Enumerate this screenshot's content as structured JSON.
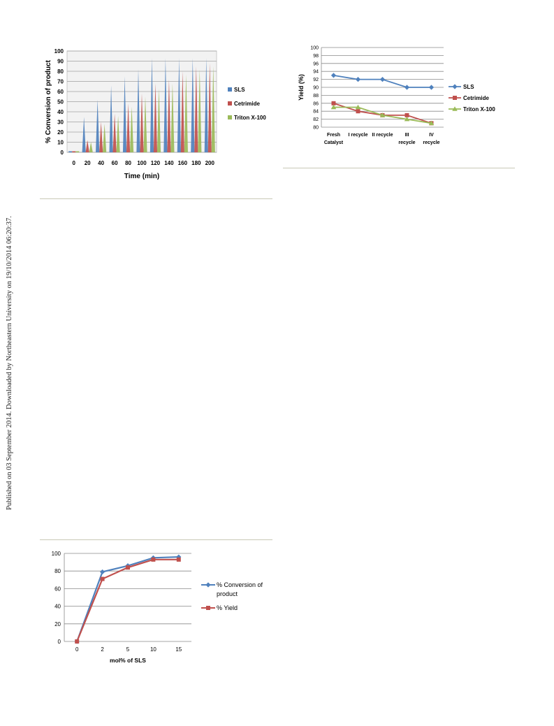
{
  "side_note": "Published on 03 September 2014. Downloaded by Northeastern University on 19/10/2014 06:20:37.",
  "chart_data": [
    {
      "type": "bar",
      "x": [
        "0",
        "20",
        "40",
        "60",
        "80",
        "100",
        "120",
        "140",
        "160",
        "180",
        "200"
      ],
      "xlabel": "Time (min)",
      "ylabel": "% Conversion of product",
      "ylim": [
        0,
        100
      ],
      "yticks": [
        0,
        10,
        20,
        30,
        40,
        50,
        60,
        70,
        80,
        90,
        100
      ],
      "grid": true,
      "legend": "right",
      "series": [
        {
          "name": "SLS",
          "color": "#4f81bd",
          "values": [
            0,
            35,
            52,
            66,
            75,
            82,
            93,
            93,
            93,
            93,
            93
          ]
        },
        {
          "name": "Cetrimide",
          "color": "#c0504d",
          "values": [
            0,
            12,
            30,
            38,
            48,
            58,
            68,
            72,
            80,
            85,
            88
          ]
        },
        {
          "name": "Triton X-100",
          "color": "#9bbb59",
          "values": [
            0,
            10,
            28,
            36,
            45,
            55,
            63,
            68,
            77,
            82,
            85
          ]
        }
      ]
    },
    {
      "type": "line",
      "categories": [
        [
          "Fresh",
          "Catalyst"
        ],
        [
          "I recycle"
        ],
        [
          "II recycle"
        ],
        [
          "III",
          "recycle"
        ],
        [
          "IV",
          "recycle"
        ]
      ],
      "ylabel": "Yield (%)",
      "ylim": [
        80,
        100
      ],
      "yticks": [
        80,
        82,
        84,
        86,
        88,
        90,
        92,
        94,
        96,
        98,
        100
      ],
      "grid": true,
      "legend": "right",
      "series": [
        {
          "name": "SLS",
          "color": "#4f81bd",
          "marker": "diamond",
          "values": [
            93,
            92,
            92,
            90,
            90
          ]
        },
        {
          "name": "Cetrimide",
          "color": "#c0504d",
          "marker": "square",
          "values": [
            86,
            84,
            83,
            83,
            81
          ]
        },
        {
          "name": "Triton X-100",
          "color": "#9bbb59",
          "marker": "triangle",
          "values": [
            85,
            85,
            83,
            82,
            81
          ]
        }
      ]
    },
    {
      "type": "line",
      "categories": [
        "0",
        "2",
        "5",
        "10",
        "15"
      ],
      "xlabel": "mol% of SLS",
      "ylim": [
        0,
        100
      ],
      "yticks": [
        0,
        20,
        40,
        60,
        80,
        100
      ],
      "grid": true,
      "legend": "right",
      "series": [
        {
          "name": "% Conversion of product",
          "legend_lines": [
            "% Conversion of",
            "product"
          ],
          "color": "#4f81bd",
          "marker": "diamond",
          "values": [
            0,
            79,
            86,
            95,
            96
          ]
        },
        {
          "name": "% Yield",
          "legend_lines": [
            "% Yield"
          ],
          "color": "#c0504d",
          "marker": "square",
          "values": [
            0,
            71,
            84,
            93,
            93
          ]
        }
      ]
    }
  ]
}
